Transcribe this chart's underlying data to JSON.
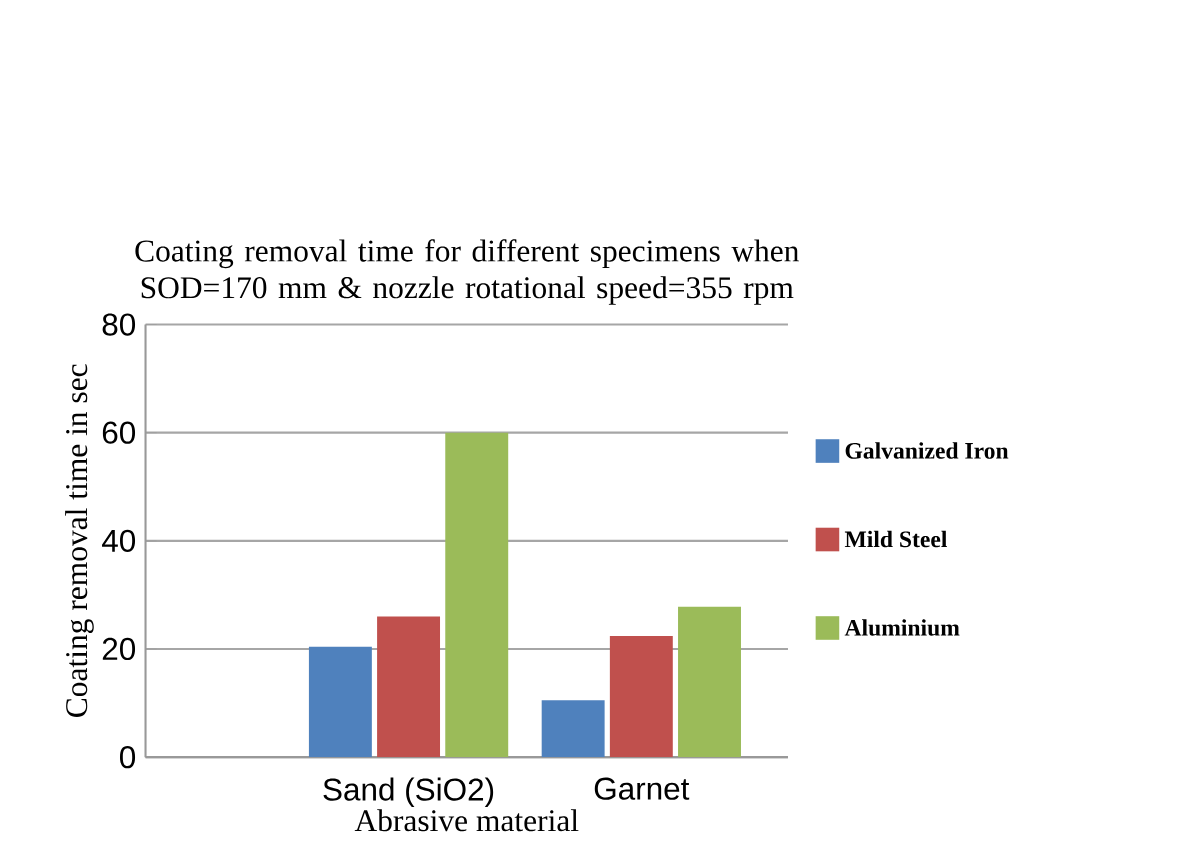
{
  "chart_data": {
    "type": "bar",
    "title": "Coating removal time for different specimens when SOD=170 mm &  nozzle rotational speed=355 rpm",
    "xlabel": "Abrasive material",
    "ylabel": "Coating  removal  time in sec",
    "categories": [
      "Sand (SiO2)",
      "Garnet"
    ],
    "series": [
      {
        "name": "Galvanized Iron",
        "color": "#4f81bd",
        "values": [
          20.4,
          10.5
        ]
      },
      {
        "name": "Mild Steel",
        "color": "#c0504d",
        "values": [
          26,
          22.4
        ]
      },
      {
        "name": "Aluminium",
        "color": "#9bbb59",
        "values": [
          60,
          27.8
        ]
      }
    ],
    "ylim": [
      0,
      80
    ],
    "yticks": [
      0,
      20,
      40,
      60,
      80
    ],
    "grid": "y",
    "legend": "right"
  }
}
